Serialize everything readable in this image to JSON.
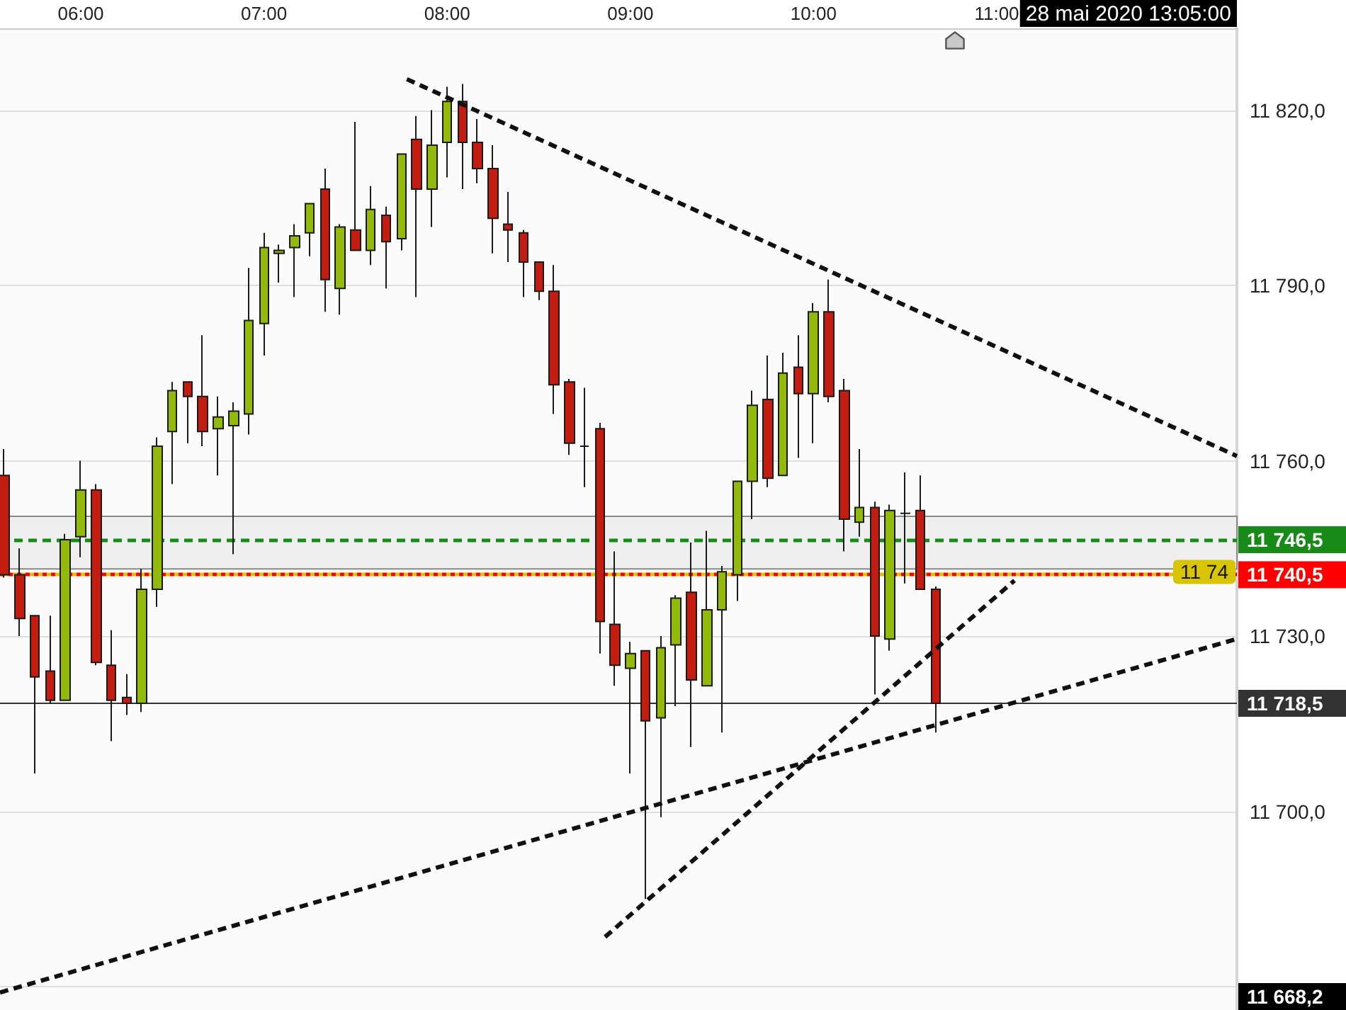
{
  "chart_data": {
    "type": "candlestick",
    "x": [
      5.5833,
      5.6667,
      5.75,
      5.8333,
      5.9167,
      6,
      6.0833,
      6.1667,
      6.25,
      6.3333,
      6.4167,
      6.5,
      6.5833,
      6.6667,
      6.75,
      6.8333,
      6.9167,
      7,
      7.0833,
      7.1667,
      7.25,
      7.3333,
      7.4167,
      7.5,
      7.5833,
      7.6667,
      7.75,
      7.8333,
      7.9167,
      8,
      8.0833,
      8.1667,
      8.25,
      8.3333,
      8.4167,
      8.5,
      8.5833,
      8.6667,
      8.75,
      8.8333,
      8.9167,
      9,
      9.0833,
      9.1667,
      9.25,
      9.3333,
      9.4167,
      9.5,
      9.5833,
      9.6667,
      9.75,
      9.8333,
      9.9167,
      10,
      10.0833,
      10.1667,
      10.25,
      10.3333,
      10.4167,
      10.5,
      10.5833,
      10.6667
    ],
    "ohlc": [
      [
        11757.5,
        11762,
        11740,
        11740.5
      ],
      [
        11740.5,
        11745,
        11730,
        11733
      ],
      [
        11733.5,
        11733.5,
        11706.5,
        11723
      ],
      [
        11724,
        11733.5,
        11718.5,
        11719
      ],
      [
        11719,
        11747.5,
        11719,
        11746.5
      ],
      [
        11747,
        11760,
        11743.5,
        11755
      ],
      [
        11755,
        11756,
        11725,
        11725.5
      ],
      [
        11725,
        11731,
        11712,
        11719
      ],
      [
        11719.5,
        11723.5,
        11716.5,
        11718.5
      ],
      [
        11718.5,
        11741.5,
        11717,
        11738
      ],
      [
        11738,
        11764,
        11735,
        11762.5
      ],
      [
        11765,
        11773.5,
        11756,
        11772
      ],
      [
        11773.5,
        11773.5,
        11763,
        11771
      ],
      [
        11771,
        11781.5,
        11762.5,
        11765
      ],
      [
        11765.5,
        11771,
        11757.5,
        11767.5
      ],
      [
        11766,
        11770,
        11744,
        11768.5
      ],
      [
        11768,
        11793,
        11764.5,
        11784
      ],
      [
        11783.5,
        11799,
        11778,
        11796.5
      ],
      [
        11795.5,
        11797,
        11790.5,
        11796
      ],
      [
        11796.5,
        11800.5,
        11788,
        11798.5
      ],
      [
        11799,
        11804,
        11795,
        11804
      ],
      [
        11806.5,
        11810,
        11785.5,
        11791
      ],
      [
        11789.5,
        11800.5,
        11785,
        11800
      ],
      [
        11799.5,
        11818,
        11796,
        11796
      ],
      [
        11796,
        11807,
        11793.5,
        11803
      ],
      [
        11802,
        11803.5,
        11789.5,
        11797.5
      ],
      [
        11798,
        11812.5,
        11796,
        11812.5
      ],
      [
        11815,
        11819,
        11788,
        11806.5
      ],
      [
        11806.5,
        11820,
        11800,
        11814
      ],
      [
        11814.5,
        11824,
        11808.5,
        11821.5
      ],
      [
        11821.5,
        11824.5,
        11806.5,
        11814.5
      ],
      [
        11814.5,
        11818.5,
        11807.5,
        11810
      ],
      [
        11810,
        11814,
        11795.5,
        11801.5
      ],
      [
        11800.5,
        11806,
        11794,
        11799.5
      ],
      [
        11799,
        11799.5,
        11788,
        11794
      ],
      [
        11794,
        11794,
        11787.5,
        11789
      ],
      [
        11789,
        11793.5,
        11768,
        11773
      ],
      [
        11773.5,
        11774,
        11761,
        11763
      ],
      [
        11762.5,
        11772.5,
        11755.5,
        11762.5
      ],
      [
        11765.5,
        11766.5,
        11727,
        11732.5
      ],
      [
        11732,
        11744.5,
        11721.5,
        11725
      ],
      [
        11724.5,
        11729,
        11706.5,
        11727
      ],
      [
        11727.5,
        11727.5,
        11685,
        11715.5
      ],
      [
        11716,
        11730,
        11699,
        11728
      ],
      [
        11728.5,
        11737,
        11718,
        11736.5
      ],
      [
        11737.5,
        11746,
        11711,
        11722.5
      ],
      [
        11721.5,
        11748,
        11721.5,
        11734.5
      ],
      [
        11734.5,
        11742,
        11713.5,
        11741
      ],
      [
        11740.5,
        11756.5,
        11736,
        11756.5
      ],
      [
        11756.5,
        11772,
        11750,
        11769.5
      ],
      [
        11770.5,
        11778,
        11755.5,
        11757
      ],
      [
        11757.5,
        11778.5,
        11757.5,
        11775
      ],
      [
        11776,
        11781.5,
        11760.5,
        11771.5
      ],
      [
        11771.5,
        11787,
        11763,
        11785.5
      ],
      [
        11785.5,
        11791,
        11770,
        11771
      ],
      [
        11772,
        11774,
        11744.5,
        11750
      ],
      [
        11749.5,
        11762,
        11747,
        11752
      ],
      [
        11752,
        11753,
        11720,
        11730
      ],
      [
        11729.5,
        11752.5,
        11727.5,
        11751.5
      ],
      [
        11751,
        11758,
        11739,
        11751
      ],
      [
        11751.5,
        11757.5,
        11738,
        11738
      ],
      [
        11738,
        11738.5,
        11713.5,
        11718.5
      ]
    ],
    "colors": [
      "#c21d10",
      "#c21d10",
      "#c21d10",
      "#c21d10",
      "#93b90c",
      "#93b90c",
      "#c21d10",
      "#c21d10",
      "#c21d10",
      "#93b90c",
      "#93b90c",
      "#93b90c",
      "#c21d10",
      "#c21d10",
      "#93b90c",
      "#93b90c",
      "#93b90c",
      "#93b90c",
      "#93b90c",
      "#93b90c",
      "#93b90c",
      "#c21d10",
      "#93b90c",
      "#c21d10",
      "#93b90c",
      "#c21d10",
      "#93b90c",
      "#c21d10",
      "#93b90c",
      "#93b90c",
      "#c21d10",
      "#c21d10",
      "#c21d10",
      "#c21d10",
      "#c21d10",
      "#c21d10",
      "#c21d10",
      "#c21d10",
      "#1b1b1b",
      "#c21d10",
      "#c21d10",
      "#93b90c",
      "#c21d10",
      "#93b90c",
      "#93b90c",
      "#c21d10",
      "#93b90c",
      "#93b90c",
      "#93b90c",
      "#93b90c",
      "#c21d10",
      "#93b90c",
      "#c21d10",
      "#93b90c",
      "#c21d10",
      "#c21d10",
      "#93b90c",
      "#c21d10",
      "#93b90c",
      "#1b1b1b",
      "#c21d10",
      "#c21d10"
    ],
    "xlim": [
      5.559,
      12.311
    ],
    "xticks": [
      {
        "value": 6,
        "label": "06:00"
      },
      {
        "value": 7,
        "label": "07:00"
      },
      {
        "value": 8,
        "label": "08:00"
      },
      {
        "value": 9,
        "label": "09:00"
      },
      {
        "value": 10,
        "label": "10:00"
      },
      {
        "value": 11,
        "label": "11:00"
      }
    ],
    "ylim": [
      11666,
      11834
    ],
    "yticks": [
      {
        "value": 11670,
        "label": null
      },
      {
        "value": 11700,
        "label": "11 700,0"
      },
      {
        "value": 11730,
        "label": "11 730,0"
      },
      {
        "value": 11760,
        "label": "11 760,0"
      },
      {
        "value": 11790,
        "label": "11 790,0"
      },
      {
        "value": 11820,
        "label": "11 820,0"
      }
    ],
    "grid": "y",
    "series": [
      {
        "type": "line",
        "x": [
          7.78,
          12.311
        ],
        "values": [
          11825.3,
          11760.8
        ],
        "color": "#111111",
        "line_style": "dashed"
      },
      {
        "type": "line",
        "x": [
          5.559,
          12.311
        ],
        "values": [
          11669,
          11729.5
        ],
        "color": "#111111",
        "line_style": "dashed"
      },
      {
        "type": "line",
        "x": [
          8.862,
          11.097
        ],
        "values": [
          11678.5,
          11739.5
        ],
        "color": "#111111",
        "line_style": "dashed"
      }
    ],
    "bands": [
      {
        "axis": "y",
        "from": 11741.5,
        "to": 11750.5,
        "color": "#efefef"
      }
    ],
    "ref_lines": [
      {
        "axis": "y",
        "value": 11746.5,
        "label": "11 746,5",
        "color": "#178a17",
        "line_style": "dashed"
      },
      {
        "axis": "y",
        "value": 11740.5,
        "label": "11 740,5",
        "color": "#ff0000",
        "line_style": "dotted"
      },
      {
        "axis": "y",
        "value": 11740.5,
        "color": "#d8c400",
        "line_style": "dotted"
      },
      {
        "axis": "y",
        "value": 11718.5,
        "label": "11 718,5",
        "color": "#333333",
        "line_style": "solid"
      }
    ],
    "annotations": [
      "28 mai 2020 13:05:00",
      {
        "text": "11 74",
        "y": 11740.5
      },
      "11 668,2"
    ]
  }
}
